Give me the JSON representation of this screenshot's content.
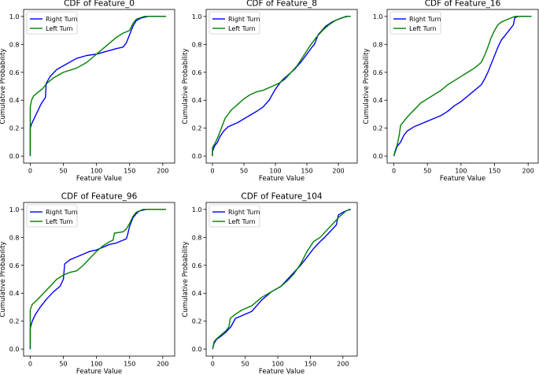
{
  "colors": {
    "right": "#0000ff",
    "left": "#008000",
    "axis": "#000000",
    "background": "#ffffff"
  },
  "chart_data": [
    {
      "type": "line",
      "title": "CDF of Feature_0",
      "xlabel": "Feature Value",
      "ylabel": "Cumulative Probability",
      "xlim": [
        -10,
        218
      ],
      "ylim": [
        -0.05,
        1.05
      ],
      "xticks": [
        0,
        50,
        100,
        150,
        200
      ],
      "yticks": [
        0.0,
        0.2,
        0.4,
        0.6,
        0.8,
        1.0
      ],
      "legend": "top-left",
      "series": [
        {
          "name": "Right Turn",
          "color": "#0000ff",
          "x": [
            0,
            0,
            2,
            5,
            8,
            12,
            16,
            20,
            23,
            24,
            30,
            40,
            55,
            70,
            85,
            100,
            115,
            130,
            140,
            145,
            150,
            155,
            160,
            168,
            178,
            205
          ],
          "y": [
            0.0,
            0.2,
            0.23,
            0.26,
            0.29,
            0.33,
            0.37,
            0.4,
            0.42,
            0.52,
            0.57,
            0.62,
            0.66,
            0.7,
            0.72,
            0.73,
            0.75,
            0.77,
            0.78,
            0.81,
            0.87,
            0.93,
            0.97,
            0.99,
            1.0,
            1.0
          ]
        },
        {
          "name": "Left Turn",
          "color": "#008000",
          "x": [
            0,
            0,
            2,
            5,
            10,
            18,
            25,
            35,
            50,
            70,
            85,
            100,
            115,
            130,
            140,
            150,
            155,
            160,
            166,
            172,
            205
          ],
          "y": [
            0.0,
            0.35,
            0.4,
            0.43,
            0.45,
            0.48,
            0.52,
            0.56,
            0.6,
            0.63,
            0.67,
            0.73,
            0.79,
            0.85,
            0.88,
            0.9,
            0.95,
            0.98,
            0.99,
            1.0,
            1.0
          ]
        }
      ]
    },
    {
      "type": "line",
      "title": "CDF of Feature_8",
      "xlabel": "Feature Value",
      "ylabel": "Cumulative Probability",
      "xlim": [
        -10,
        230
      ],
      "ylim": [
        -0.05,
        1.05
      ],
      "xticks": [
        0,
        50,
        100,
        150,
        200
      ],
      "yticks": [
        0.0,
        0.2,
        0.4,
        0.6,
        0.8,
        1.0
      ],
      "legend": "top-left",
      "series": [
        {
          "name": "Right Turn",
          "color": "#0000ff",
          "x": [
            0,
            0,
            3,
            8,
            12,
            18,
            25,
            40,
            55,
            70,
            80,
            90,
            100,
            110,
            120,
            130,
            140,
            150,
            158,
            162,
            168,
            180,
            190,
            200,
            212,
            218
          ],
          "y": [
            0.0,
            0.03,
            0.07,
            0.1,
            0.14,
            0.18,
            0.21,
            0.24,
            0.28,
            0.32,
            0.35,
            0.4,
            0.48,
            0.54,
            0.58,
            0.62,
            0.67,
            0.73,
            0.78,
            0.8,
            0.87,
            0.93,
            0.96,
            0.98,
            1.0,
            1.0
          ]
        },
        {
          "name": "Left Turn",
          "color": "#008000",
          "x": [
            0,
            0,
            5,
            10,
            15,
            20,
            30,
            40,
            50,
            60,
            70,
            80,
            95,
            105,
            115,
            125,
            135,
            145,
            155,
            165,
            175,
            185,
            195,
            205,
            215,
            220
          ],
          "y": [
            0.0,
            0.06,
            0.1,
            0.15,
            0.21,
            0.27,
            0.33,
            0.37,
            0.41,
            0.44,
            0.46,
            0.47,
            0.5,
            0.52,
            0.55,
            0.6,
            0.65,
            0.72,
            0.79,
            0.85,
            0.9,
            0.94,
            0.97,
            0.99,
            1.0,
            1.0
          ]
        }
      ]
    },
    {
      "type": "line",
      "title": "CDF of Feature_16",
      "xlabel": "Feature Value",
      "ylabel": "Cumulative Probability",
      "xlim": [
        -10,
        215
      ],
      "ylim": [
        -0.05,
        1.05
      ],
      "xticks": [
        0,
        50,
        100,
        150,
        200
      ],
      "yticks": [
        0.0,
        0.2,
        0.4,
        0.6,
        0.8,
        1.0
      ],
      "legend": "top-left",
      "series": [
        {
          "name": "Right Turn",
          "color": "#0000ff",
          "x": [
            0,
            2,
            5,
            10,
            15,
            20,
            30,
            40,
            50,
            60,
            70,
            80,
            90,
            100,
            110,
            120,
            130,
            135,
            140,
            145,
            150,
            155,
            160,
            170,
            178,
            180,
            185,
            205
          ],
          "y": [
            0.0,
            0.03,
            0.07,
            0.1,
            0.15,
            0.18,
            0.21,
            0.23,
            0.25,
            0.27,
            0.29,
            0.32,
            0.36,
            0.39,
            0.43,
            0.47,
            0.51,
            0.55,
            0.6,
            0.66,
            0.72,
            0.78,
            0.83,
            0.89,
            0.94,
            0.99,
            1.0,
            1.0
          ]
        },
        {
          "name": "Left Turn",
          "color": "#008000",
          "x": [
            0,
            2,
            5,
            8,
            10,
            15,
            20,
            30,
            40,
            50,
            60,
            70,
            80,
            90,
            100,
            110,
            120,
            130,
            135,
            140,
            145,
            150,
            155,
            160,
            170,
            180,
            205
          ],
          "y": [
            0.0,
            0.04,
            0.08,
            0.15,
            0.22,
            0.25,
            0.28,
            0.33,
            0.38,
            0.41,
            0.44,
            0.47,
            0.51,
            0.54,
            0.57,
            0.6,
            0.63,
            0.67,
            0.72,
            0.78,
            0.85,
            0.9,
            0.94,
            0.96,
            0.98,
            1.0,
            1.0
          ]
        }
      ]
    },
    {
      "type": "line",
      "title": "CDF of Feature_96",
      "xlabel": "Feature Value",
      "ylabel": "Cumulative Probability",
      "xlim": [
        -10,
        218
      ],
      "ylim": [
        -0.05,
        1.05
      ],
      "xticks": [
        0,
        50,
        100,
        150,
        200
      ],
      "yticks": [
        0.0,
        0.2,
        0.4,
        0.6,
        0.8,
        1.0
      ],
      "legend": "top-left",
      "series": [
        {
          "name": "Right Turn",
          "color": "#0000ff",
          "x": [
            0,
            0,
            3,
            8,
            15,
            25,
            35,
            45,
            50,
            52,
            60,
            70,
            80,
            90,
            100,
            110,
            120,
            130,
            140,
            145,
            147,
            150,
            155,
            160,
            165,
            175,
            205
          ],
          "y": [
            0.0,
            0.15,
            0.2,
            0.25,
            0.3,
            0.36,
            0.41,
            0.45,
            0.5,
            0.61,
            0.64,
            0.66,
            0.68,
            0.7,
            0.71,
            0.73,
            0.75,
            0.76,
            0.78,
            0.79,
            0.82,
            0.88,
            0.94,
            0.97,
            0.99,
            1.0,
            1.0
          ]
        },
        {
          "name": "Left Turn",
          "color": "#008000",
          "x": [
            0,
            0,
            3,
            10,
            20,
            30,
            40,
            50,
            60,
            70,
            80,
            90,
            100,
            110,
            120,
            125,
            127,
            140,
            145,
            150,
            155,
            160,
            170,
            205
          ],
          "y": [
            0.0,
            0.28,
            0.32,
            0.35,
            0.4,
            0.45,
            0.5,
            0.53,
            0.55,
            0.56,
            0.6,
            0.65,
            0.7,
            0.74,
            0.77,
            0.78,
            0.83,
            0.84,
            0.86,
            0.9,
            0.95,
            0.98,
            1.0,
            1.0
          ]
        }
      ]
    },
    {
      "type": "line",
      "title": "CDF of Feature_104",
      "xlabel": "Feature Value",
      "ylabel": "Cumulative Probability",
      "xlim": [
        -10,
        222
      ],
      "ylim": [
        -0.05,
        1.05
      ],
      "xticks": [
        0,
        50,
        100,
        150,
        200
      ],
      "yticks": [
        0.0,
        0.2,
        0.4,
        0.6,
        0.8,
        1.0
      ],
      "legend": "top-left",
      "series": [
        {
          "name": "Right Turn",
          "color": "#0000ff",
          "x": [
            0,
            2,
            6,
            12,
            20,
            28,
            35,
            45,
            60,
            75,
            90,
            105,
            115,
            125,
            135,
            145,
            155,
            165,
            172,
            180,
            190,
            193,
            200,
            210,
            212
          ],
          "y": [
            0.0,
            0.04,
            0.07,
            0.09,
            0.12,
            0.16,
            0.22,
            0.24,
            0.27,
            0.35,
            0.41,
            0.45,
            0.5,
            0.55,
            0.6,
            0.66,
            0.72,
            0.77,
            0.8,
            0.84,
            0.89,
            0.96,
            0.98,
            1.0,
            1.0
          ]
        },
        {
          "name": "Left Turn",
          "color": "#008000",
          "x": [
            0,
            2,
            5,
            10,
            20,
            25,
            27,
            35,
            45,
            60,
            75,
            90,
            105,
            115,
            125,
            135,
            145,
            155,
            165,
            175,
            185,
            195,
            205,
            212
          ],
          "y": [
            0.0,
            0.05,
            0.07,
            0.09,
            0.13,
            0.16,
            0.22,
            0.25,
            0.28,
            0.31,
            0.37,
            0.41,
            0.45,
            0.49,
            0.54,
            0.61,
            0.7,
            0.77,
            0.8,
            0.85,
            0.9,
            0.95,
            0.99,
            1.0
          ]
        }
      ]
    }
  ]
}
